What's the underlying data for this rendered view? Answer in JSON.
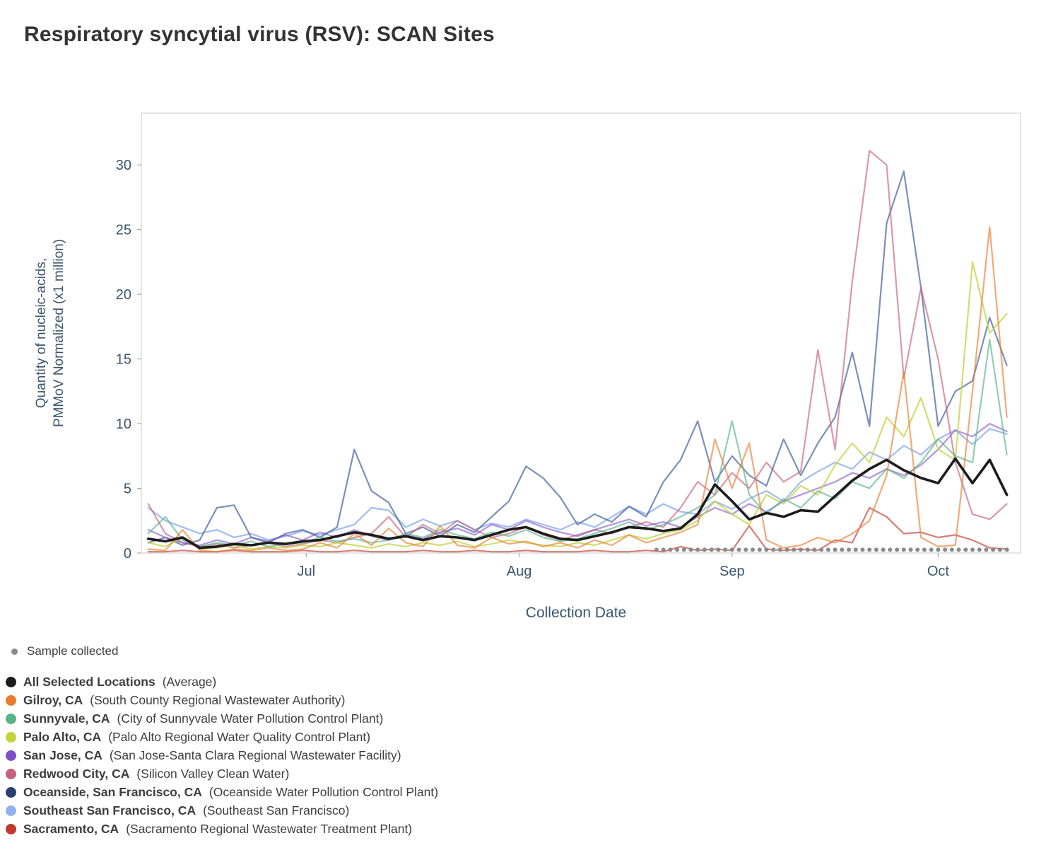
{
  "title": "Respiratory syncytial virus (RSV): SCAN Sites",
  "axes": {
    "x_title": "Collection Date",
    "y_title_line1": "Quantity of nucleic-acids,",
    "y_title_line2": "PMMoV Normalized (x1 million)"
  },
  "colors": {
    "axis_text": "#3b566f",
    "title_text": "#333333",
    "plot_border": "#c8c8c8",
    "legend_text": "#3d3d3d"
  },
  "sample_legend": {
    "label": "Sample collected",
    "color": "#8a8a8a"
  },
  "legend": [
    {
      "name": "All Selected Locations",
      "desc": "(Average)",
      "color": "#1c1c1c"
    },
    {
      "name": "Gilroy, CA",
      "desc": "(South County Regional Wastewater Authority)",
      "color": "#e87d2e"
    },
    {
      "name": "Sunnyvale, CA",
      "desc": "(City of Sunnyvale Water Pollution Control Plant)",
      "color": "#56b287"
    },
    {
      "name": "Palo Alto, CA",
      "desc": "(Palo Alto Regional Water Quality Control Plant)",
      "color": "#c3d13f"
    },
    {
      "name": "San Jose, CA",
      "desc": "(San Jose-Santa Clara Regional Wastewater Facility)",
      "color": "#7e4fc9"
    },
    {
      "name": "Redwood City, CA",
      "desc": "(Silicon Valley Clean Water)",
      "color": "#c4617e"
    },
    {
      "name": "Oceanside, San Francisco, CA",
      "desc": "(Oceanside Water Pollution Control Plant)",
      "color": "#2d3f6e"
    },
    {
      "name": "Southeast San Francisco, CA",
      "desc": "(Southeast San Francisco)",
      "color": "#8fb2ec"
    },
    {
      "name": "Sacramento, CA",
      "desc": "(Sacramento Regional Wastewater Treatment Plant)",
      "color": "#c0392b"
    }
  ],
  "chart_data": {
    "type": "line",
    "title": "Respiratory syncytial virus (RSV): SCAN Sites",
    "xlabel": "Collection Date",
    "ylabel": "Quantity of nucleic-acids, PMMoV Normalized (x1 million)",
    "x_unit": "days from start of shown range (early June) to mid October",
    "xlim": [
      -1,
      127
    ],
    "ylim": [
      0,
      34
    ],
    "y_ticks": [
      0,
      5,
      10,
      15,
      20,
      25,
      30
    ],
    "x_ticks": [
      {
        "day": 23,
        "label": "Jul"
      },
      {
        "day": 54,
        "label": "Aug"
      },
      {
        "day": 85,
        "label": "Sep"
      },
      {
        "day": 115,
        "label": "Oct"
      }
    ],
    "grid": false,
    "legend_position": "bottom-left",
    "x_days": [
      0,
      2.5,
      5,
      7.5,
      10,
      12.5,
      15,
      17.5,
      20,
      22.5,
      25,
      27.5,
      30,
      32.5,
      35,
      37.5,
      40,
      42.5,
      45,
      47.5,
      50,
      52.5,
      55,
      57.5,
      60,
      62.5,
      65,
      67.5,
      70,
      72.5,
      75,
      77.5,
      80,
      82.5,
      85,
      87.5,
      90,
      92.5,
      95,
      97.5,
      100,
      102.5,
      105,
      107.5,
      110,
      112.5,
      115,
      117.5,
      120,
      122.5,
      125
    ],
    "series": [
      {
        "name": "All Selected Locations (Average)",
        "color": "#1c1c1c",
        "width": 3.6,
        "opacity": 1,
        "values": [
          1.1,
          0.9,
          1.2,
          0.4,
          0.5,
          0.7,
          0.6,
          0.8,
          0.7,
          0.9,
          1.0,
          1.3,
          1.6,
          1.4,
          1.1,
          1.3,
          1.0,
          1.3,
          1.2,
          1.0,
          1.4,
          1.8,
          2.0,
          1.5,
          1.1,
          1.0,
          1.3,
          1.6,
          2.0,
          1.9,
          1.7,
          1.9,
          3.0,
          5.3,
          4.0,
          2.6,
          3.1,
          2.8,
          3.3,
          3.2,
          4.4,
          5.6,
          6.5,
          7.2,
          6.4,
          5.8,
          5.4,
          7.3,
          5.4,
          7.2,
          4.5
        ]
      },
      {
        "name": "Gilroy, CA",
        "color": "#e87d2e",
        "width": 2.2,
        "opacity": 0.65,
        "values": [
          0.3,
          0.2,
          1.8,
          0.2,
          0.1,
          0.3,
          0.2,
          0.4,
          0.2,
          0.3,
          0.8,
          0.4,
          1.5,
          0.6,
          1.9,
          0.8,
          0.5,
          2.1,
          0.6,
          0.4,
          1.2,
          0.7,
          0.9,
          0.5,
          0.8,
          0.4,
          1.0,
          0.6,
          1.4,
          0.8,
          1.2,
          1.6,
          2.2,
          8.8,
          5.0,
          8.5,
          1.0,
          0.4,
          0.6,
          1.2,
          0.8,
          1.5,
          2.5,
          6.0,
          14.0,
          1.2,
          0.5,
          0.6,
          12.5,
          25.2,
          10.5
        ]
      },
      {
        "name": "Sunnyvale, CA",
        "color": "#56b287",
        "width": 2.2,
        "opacity": 0.65,
        "values": [
          1.5,
          2.8,
          1.0,
          0.5,
          0.8,
          0.6,
          0.9,
          0.5,
          0.7,
          0.8,
          1.2,
          0.9,
          1.1,
          0.8,
          1.0,
          1.5,
          1.2,
          1.8,
          1.4,
          1.1,
          1.6,
          1.3,
          1.8,
          1.2,
          0.9,
          1.1,
          1.5,
          1.9,
          2.4,
          1.8,
          2.2,
          2.8,
          3.5,
          4.5,
          10.2,
          4.5,
          3.0,
          4.2,
          3.5,
          4.8,
          4.2,
          5.5,
          5.0,
          6.5,
          5.8,
          7.0,
          8.8,
          7.5,
          7.0,
          16.5,
          7.6
        ]
      },
      {
        "name": "Palo Alto, CA",
        "color": "#c3d13f",
        "width": 2.2,
        "opacity": 0.75,
        "values": [
          0.8,
          0.5,
          1.2,
          0.3,
          0.4,
          0.6,
          0.3,
          0.5,
          0.4,
          0.6,
          0.5,
          0.8,
          0.6,
          0.4,
          0.7,
          0.5,
          0.8,
          0.6,
          0.9,
          0.5,
          0.7,
          1.0,
          0.8,
          0.6,
          0.5,
          0.8,
          0.6,
          1.0,
          1.4,
          1.1,
          1.5,
          1.8,
          2.5,
          4.0,
          3.0,
          2.2,
          4.5,
          3.8,
          5.2,
          4.5,
          6.8,
          8.5,
          7.0,
          10.5,
          9.0,
          12.0,
          8.0,
          7.2,
          22.5,
          17.0,
          18.5
        ]
      },
      {
        "name": "San Jose, CA",
        "color": "#7e4fc9",
        "width": 2.2,
        "opacity": 0.6,
        "values": [
          1.8,
          1.2,
          0.8,
          0.6,
          1.0,
          0.7,
          1.2,
          0.9,
          1.4,
          1.0,
          1.6,
          1.2,
          1.8,
          1.3,
          1.0,
          1.4,
          1.1,
          1.6,
          1.9,
          1.4,
          2.2,
          1.8,
          2.5,
          2.0,
          1.6,
          1.3,
          1.8,
          2.2,
          2.6,
          2.1,
          2.4,
          2.0,
          2.8,
          3.5,
          3.0,
          3.8,
          3.2,
          4.0,
          4.5,
          5.0,
          5.5,
          6.2,
          5.8,
          6.5,
          6.0,
          6.8,
          8.0,
          9.5,
          9.0,
          10.0,
          9.4
        ]
      },
      {
        "name": "Redwood City, CA",
        "color": "#c4617e",
        "width": 2.2,
        "opacity": 0.65,
        "values": [
          3.8,
          1.5,
          0.8,
          0.5,
          0.7,
          0.4,
          0.6,
          0.8,
          0.5,
          0.7,
          1.0,
          0.8,
          1.2,
          1.5,
          2.8,
          1.2,
          2.2,
          1.5,
          2.5,
          1.8,
          1.2,
          1.5,
          2.0,
          1.4,
          1.0,
          1.4,
          1.8,
          1.5,
          2.0,
          2.4,
          2.0,
          3.5,
          5.5,
          4.5,
          6.2,
          5.0,
          7.0,
          5.5,
          6.3,
          15.7,
          8.0,
          21.0,
          31.1,
          30.0,
          13.5,
          20.5,
          15.0,
          7.0,
          3.0,
          2.6,
          3.8
        ]
      },
      {
        "name": "Oceanside, San Francisco, CA",
        "color": "#41619c",
        "width": 2.2,
        "opacity": 0.7,
        "values": [
          0.8,
          1.2,
          0.6,
          1.0,
          3.5,
          3.7,
          1.2,
          0.8,
          1.5,
          1.8,
          1.2,
          2.0,
          8.0,
          4.8,
          3.9,
          1.5,
          2.0,
          1.3,
          2.2,
          1.6,
          2.8,
          4.0,
          6.7,
          5.8,
          4.3,
          2.2,
          3.0,
          2.4,
          3.6,
          2.8,
          5.5,
          7.2,
          10.2,
          5.5,
          7.5,
          6.0,
          5.2,
          8.8,
          6.0,
          8.5,
          10.5,
          15.5,
          9.8,
          25.5,
          29.5,
          20.5,
          9.8,
          12.5,
          13.3,
          18.2,
          14.5
        ]
      },
      {
        "name": "Southeast San Francisco, CA",
        "color": "#8fb2ec",
        "width": 2.2,
        "opacity": 0.85,
        "values": [
          3.5,
          2.5,
          2.0,
          1.5,
          1.8,
          1.2,
          1.5,
          1.0,
          1.3,
          1.7,
          1.4,
          1.8,
          2.2,
          3.5,
          3.3,
          2.0,
          2.6,
          2.1,
          2.5,
          1.8,
          2.3,
          2.0,
          2.6,
          2.2,
          1.8,
          2.4,
          2.0,
          2.8,
          3.6,
          3.0,
          3.8,
          3.2,
          3.0,
          4.0,
          3.4,
          4.2,
          4.8,
          4.0,
          5.5,
          6.3,
          7.0,
          6.5,
          7.8,
          7.2,
          8.3,
          7.6,
          8.8,
          9.5,
          8.4,
          9.6,
          9.2
        ]
      },
      {
        "name": "Sacramento, CA",
        "color": "#c0392b",
        "width": 2.2,
        "opacity": 0.65,
        "values": [
          0.1,
          0.1,
          0.2,
          0.1,
          0.1,
          0.2,
          0.1,
          0.1,
          0.1,
          0.2,
          0.1,
          0.1,
          0.2,
          0.1,
          0.1,
          0.1,
          0.2,
          0.1,
          0.1,
          0.2,
          0.1,
          0.1,
          0.2,
          0.1,
          0.1,
          0.1,
          0.2,
          0.1,
          0.1,
          0.2,
          0.1,
          0.5,
          0.2,
          0.3,
          0.2,
          2.1,
          0.3,
          0.2,
          0.3,
          0.2,
          1.0,
          0.8,
          3.5,
          2.8,
          1.5,
          1.6,
          1.2,
          1.4,
          1.0,
          0.4,
          0.3
        ]
      }
    ],
    "sample_collected": {
      "label": "Sample collected",
      "color": "#8a8a8a",
      "y": 0.25,
      "days": [
        74,
        75,
        76,
        77,
        78,
        79,
        80,
        81,
        82,
        83,
        84,
        85,
        86,
        87,
        88,
        89,
        90,
        91,
        92,
        93,
        94,
        95,
        96,
        97,
        98,
        99,
        100,
        101,
        102,
        103,
        104,
        105,
        106,
        107,
        108,
        109,
        110,
        111,
        112,
        113,
        114,
        115,
        116,
        117,
        118,
        119,
        120,
        121,
        122,
        123,
        124,
        125
      ]
    }
  }
}
